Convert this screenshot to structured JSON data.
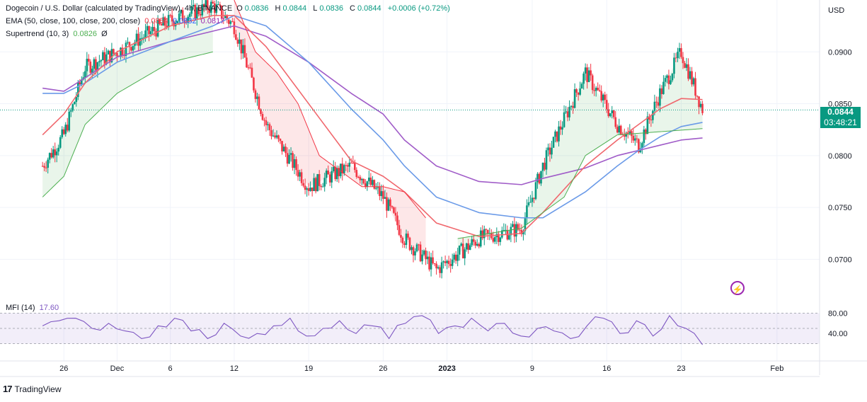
{
  "header": {
    "symbol": "Dogecoin / U.S. Dollar (calculated by TradingView), 4h, BINANCE",
    "ohlc": {
      "o_label": "O",
      "o": "0.0836",
      "h_label": "H",
      "h": "0.0844",
      "l_label": "L",
      "l": "0.0836",
      "c_label": "C",
      "c": "0.0844",
      "change": "+0.0006 (+0.72%)"
    },
    "ema_label": "EMA (50, close, 100, close, 200, close)",
    "ema_values": [
      "0.0854",
      "0.0832",
      "0.0817"
    ],
    "supertrend_label": "Supertrend (10, 3)",
    "supertrend_value": "0.0826",
    "supertrend_extra": "Ø",
    "mfi_label": "MFI (14)",
    "mfi_value": "17.60"
  },
  "price_tag": {
    "price": "0.0844",
    "countdown": "03:48:21"
  },
  "axes": {
    "currency": "USD",
    "y_ticks": [
      "0.0900",
      "0.0850",
      "0.0800",
      "0.0750",
      "0.0700"
    ],
    "mfi_ticks": [
      "80.00",
      "40.00"
    ],
    "x_ticks": [
      "26",
      "Dec",
      "6",
      "12",
      "19",
      "26",
      "2023",
      "9",
      "16",
      "23",
      "Feb"
    ]
  },
  "brand": {
    "name": "TradingView"
  },
  "colors": {
    "up": "#089981",
    "down": "#f23645",
    "ema50": "#f0676d",
    "ema100": "#6a9ae8",
    "ema200": "#a05cc8",
    "supertrend_up": "#4caf50",
    "supertrend_down": "#f23645",
    "mfi": "#7e57c2"
  },
  "chart_data": {
    "type": "candlestick",
    "timeframe": "4h",
    "ylim": [
      0.066,
      0.095
    ],
    "mfi_ylim": [
      0,
      100
    ],
    "x_dates": [
      "2022-11-24",
      "2022-11-26",
      "2022-12-01",
      "2022-12-06",
      "2022-12-12",
      "2022-12-19",
      "2022-12-26",
      "2023-01-01",
      "2023-01-09",
      "2023-01-16",
      "2023-01-23",
      "2023-01-25",
      "2023-02-01"
    ],
    "price": [
      0.079,
      0.082,
      0.0885,
      0.09,
      0.093,
      0.0945,
      0.0925,
      0.083,
      0.077,
      0.079,
      0.076,
      0.072,
      0.069,
      0.072,
      0.073,
      0.079,
      0.088,
      0.083,
      0.081,
      0.086,
      0.09,
      0.0845
    ],
    "price_dates": [
      "2022-11-24",
      "2022-11-26",
      "2022-11-28",
      "2022-12-01",
      "2022-12-06",
      "2022-12-10",
      "2022-12-12",
      "2022-12-15",
      "2022-12-19",
      "2022-12-23",
      "2022-12-26",
      "2022-12-28",
      "2022-12-31",
      "2023-01-04",
      "2023-01-08",
      "2023-01-10",
      "2023-01-14",
      "2023-01-17",
      "2023-01-19",
      "2023-01-21",
      "2023-01-23",
      "2023-01-25"
    ],
    "ema50": [
      0.082,
      0.084,
      0.087,
      0.09,
      0.0925,
      0.0935,
      0.0935,
      0.0905,
      0.085,
      0.0795,
      0.078,
      0.0765,
      0.0735,
      0.0722,
      0.0725,
      0.0745,
      0.079,
      0.0815,
      0.083,
      0.0845,
      0.0855,
      0.0854
    ],
    "ema100": [
      0.086,
      0.086,
      0.087,
      0.089,
      0.091,
      0.0925,
      0.0935,
      0.0925,
      0.089,
      0.0845,
      0.0815,
      0.079,
      0.076,
      0.0745,
      0.074,
      0.074,
      0.0765,
      0.079,
      0.0805,
      0.0818,
      0.0828,
      0.0832
    ],
    "ema200": [
      0.0865,
      0.0862,
      0.0875,
      0.0895,
      0.091,
      0.092,
      0.0925,
      0.0915,
      0.089,
      0.086,
      0.084,
      0.0815,
      0.079,
      0.0775,
      0.0772,
      0.0778,
      0.0788,
      0.08,
      0.0805,
      0.081,
      0.0815,
      0.0817
    ],
    "supertrend_up": [
      0.076,
      0.078,
      0.083,
      0.086,
      0.089,
      0.09
    ],
    "supertrend_up_dates": [
      "2022-11-24",
      "2022-11-26",
      "2022-11-28",
      "2022-12-01",
      "2022-12-06",
      "2022-12-10"
    ],
    "supertrend_down": [
      0.095,
      0.09,
      0.088,
      0.085,
      0.08,
      0.077,
      0.077,
      0.0765,
      0.074
    ],
    "supertrend_down_dates": [
      "2022-12-12",
      "2022-12-14",
      "2022-12-16",
      "2022-12-18",
      "2022-12-20",
      "2022-12-24",
      "2022-12-26",
      "2022-12-28",
      "2022-12-30"
    ],
    "supertrend_up2": [
      0.072,
      0.073,
      0.0745,
      0.076,
      0.08,
      0.082,
      0.0826
    ],
    "supertrend_up2_dates": [
      "2023-01-02",
      "2023-01-08",
      "2023-01-10",
      "2023-01-12",
      "2023-01-14",
      "2023-01-17",
      "2023-01-25"
    ],
    "mfi": [
      55,
      65,
      70,
      50,
      60,
      45,
      30,
      55,
      70,
      45,
      30,
      60,
      35,
      40,
      55,
      70,
      35,
      50,
      65,
      40,
      55,
      30,
      60,
      75,
      40,
      55,
      70,
      45,
      60,
      35,
      50,
      45,
      30,
      55,
      70,
      40,
      65,
      35,
      75,
      50,
      18
    ],
    "mfi_dates_range": [
      "2022-11-24",
      "2023-01-25"
    ]
  }
}
